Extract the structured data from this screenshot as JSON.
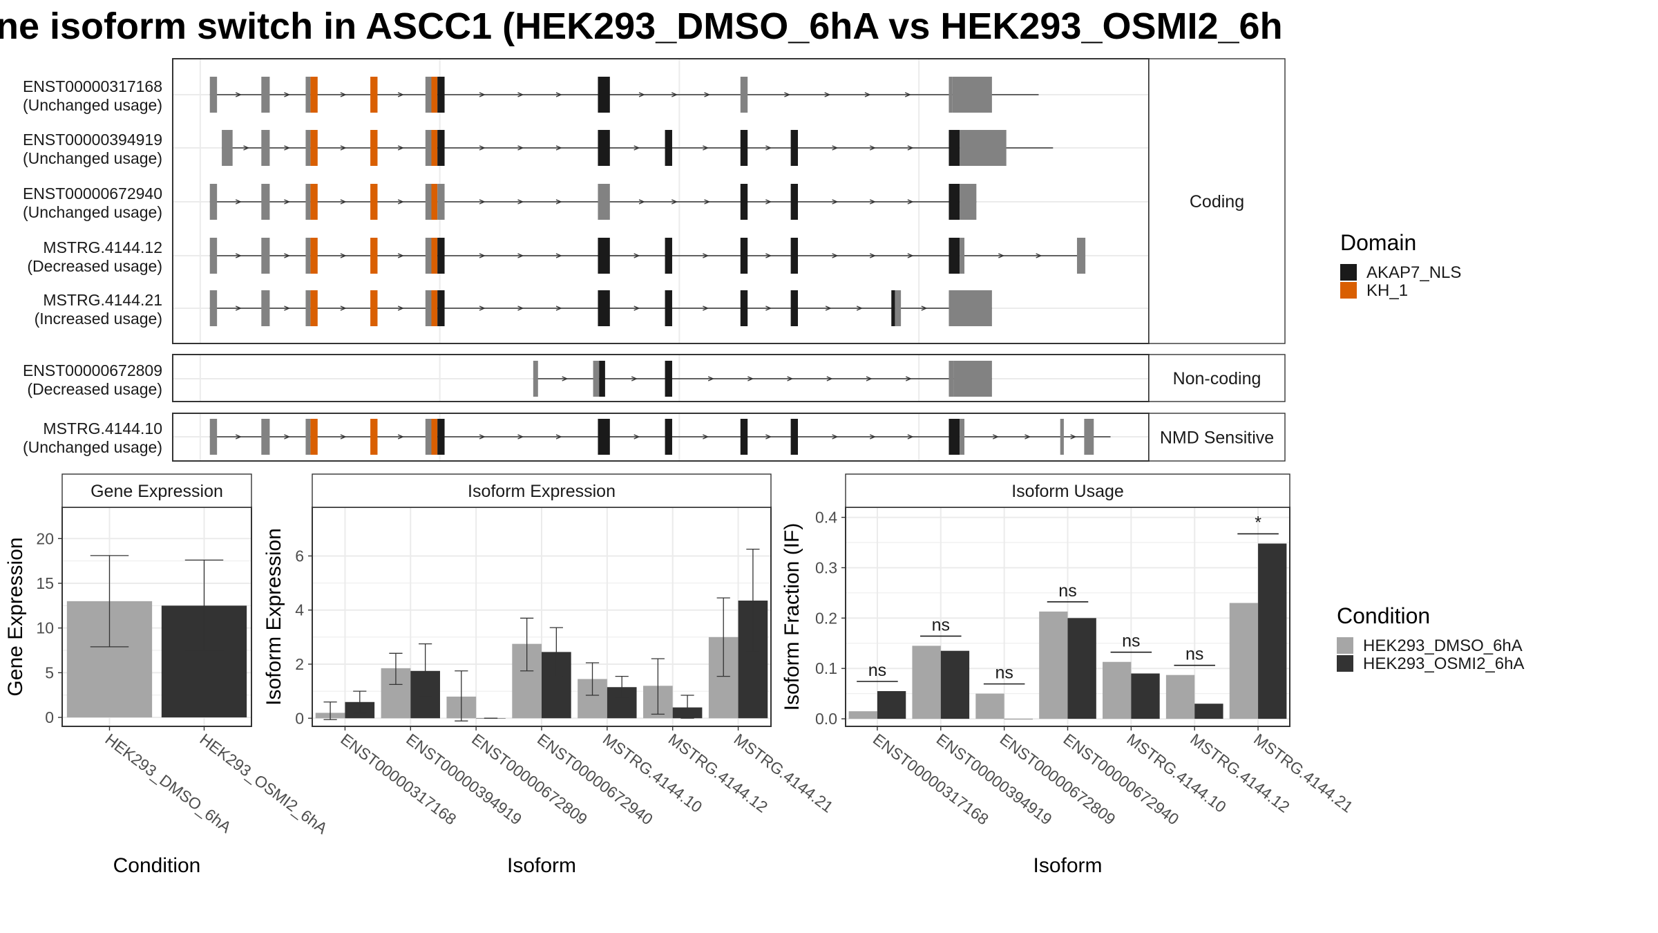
{
  "title": "ne isoform switch in ASCC1 (HEK293_DMSO_6hA vs HEK293_OSMI2_6h",
  "colors": {
    "exon_noncoding": "#828282",
    "exon_coding": "#1a1a1a",
    "AKAP7_NLS": "#1a1a1a",
    "KH_1": "#d95f02",
    "cond1": "#a6a6a6",
    "cond2": "#333333",
    "panel_border": "#333333",
    "strip_border": "#333333",
    "grid": "#ebebeb"
  },
  "domain_legend": {
    "title": "Domain",
    "items": [
      {
        "label": "AKAP7_NLS",
        "color": "#1a1a1a"
      },
      {
        "label": "KH_1",
        "color": "#d95f02"
      }
    ]
  },
  "condition_legend": {
    "title": "Condition",
    "items": [
      {
        "label": "HEK293_DMSO_6hA",
        "color": "#a6a6a6"
      },
      {
        "label": "HEK293_OSMI2_6hA",
        "color": "#333333"
      }
    ]
  },
  "transcripts": {
    "groups": [
      {
        "label": "Coding",
        "rows": [
          {
            "id": "ENST00000317168",
            "usage": "(Unchanged usage)",
            "start": 0.8,
            "end": 70.0,
            "exons": [
              [
                0.8,
                1.4,
                "n"
              ],
              [
                5.1,
                5.8,
                "n"
              ],
              [
                8.8,
                9.2,
                "n"
              ],
              [
                9.2,
                9.8,
                "K"
              ],
              [
                14.2,
                14.8,
                "K"
              ],
              [
                18.8,
                19.3,
                "n"
              ],
              [
                19.3,
                19.8,
                "K"
              ],
              [
                19.8,
                20.4,
                "c"
              ],
              [
                33.2,
                34.2,
                "c"
              ],
              [
                45.1,
                45.7,
                "n"
              ],
              [
                62.5,
                62.8,
                "n"
              ],
              [
                62.8,
                66.1,
                "n"
              ]
            ]
          },
          {
            "id": "ENST00000394919",
            "usage": "(Unchanged usage)",
            "start": 1.8,
            "end": 71.2,
            "exons": [
              [
                1.8,
                2.7,
                "n"
              ],
              [
                5.1,
                5.8,
                "n"
              ],
              [
                8.8,
                9.2,
                "n"
              ],
              [
                9.2,
                9.8,
                "K"
              ],
              [
                14.2,
                14.8,
                "K"
              ],
              [
                18.8,
                19.3,
                "n"
              ],
              [
                19.3,
                19.8,
                "K"
              ],
              [
                19.8,
                20.4,
                "c"
              ],
              [
                33.2,
                34.2,
                "c"
              ],
              [
                38.8,
                39.4,
                "c"
              ],
              [
                45.1,
                45.7,
                "c"
              ],
              [
                49.3,
                49.9,
                "c"
              ],
              [
                62.5,
                63.4,
                "c"
              ],
              [
                63.4,
                67.3,
                "n"
              ]
            ]
          },
          {
            "id": "ENST00000672940",
            "usage": "(Unchanged usage)",
            "start": 0.8,
            "end": 64.8,
            "exons": [
              [
                0.8,
                1.4,
                "n"
              ],
              [
                5.1,
                5.8,
                "n"
              ],
              [
                8.8,
                9.2,
                "n"
              ],
              [
                9.2,
                9.8,
                "K"
              ],
              [
                14.2,
                14.8,
                "K"
              ],
              [
                18.8,
                19.3,
                "n"
              ],
              [
                19.3,
                19.8,
                "K"
              ],
              [
                19.8,
                20.4,
                "n"
              ],
              [
                33.2,
                34.2,
                "n"
              ],
              [
                45.1,
                45.7,
                "c"
              ],
              [
                49.3,
                49.9,
                "c"
              ],
              [
                62.5,
                63.4,
                "c"
              ],
              [
                63.4,
                64.8,
                "n"
              ]
            ]
          },
          {
            "id": "MSTRG.4144.12",
            "usage": "(Decreased usage)",
            "start": 0.8,
            "end": 73.8,
            "exons": [
              [
                0.8,
                1.4,
                "n"
              ],
              [
                5.1,
                5.8,
                "n"
              ],
              [
                8.8,
                9.2,
                "n"
              ],
              [
                9.2,
                9.8,
                "K"
              ],
              [
                14.2,
                14.8,
                "K"
              ],
              [
                18.8,
                19.3,
                "n"
              ],
              [
                19.3,
                19.8,
                "K"
              ],
              [
                19.8,
                20.4,
                "c"
              ],
              [
                33.2,
                34.2,
                "c"
              ],
              [
                38.8,
                39.4,
                "c"
              ],
              [
                45.1,
                45.7,
                "c"
              ],
              [
                49.3,
                49.9,
                "c"
              ],
              [
                62.5,
                63.4,
                "c"
              ],
              [
                63.4,
                63.8,
                "n"
              ],
              [
                73.2,
                73.9,
                "n"
              ]
            ]
          },
          {
            "id": "MSTRG.4144.21",
            "usage": "(Increased usage)",
            "start": 0.8,
            "end": 66.1,
            "exons": [
              [
                0.8,
                1.4,
                "n"
              ],
              [
                5.1,
                5.8,
                "n"
              ],
              [
                8.8,
                9.2,
                "n"
              ],
              [
                9.2,
                9.8,
                "K"
              ],
              [
                14.2,
                14.8,
                "K"
              ],
              [
                18.8,
                19.3,
                "n"
              ],
              [
                19.3,
                19.8,
                "K"
              ],
              [
                19.8,
                20.4,
                "c"
              ],
              [
                33.2,
                34.2,
                "c"
              ],
              [
                38.8,
                39.4,
                "c"
              ],
              [
                45.1,
                45.7,
                "c"
              ],
              [
                49.3,
                49.9,
                "c"
              ],
              [
                57.7,
                58.0,
                "c"
              ],
              [
                58.0,
                58.5,
                "n"
              ],
              [
                62.5,
                66.1,
                "n"
              ]
            ]
          }
        ]
      },
      {
        "label": "Non-coding",
        "rows": [
          {
            "id": "ENST00000672809",
            "usage": "(Decreased usage)",
            "start": 27.8,
            "end": 66.1,
            "exons": [
              [
                27.8,
                28.2,
                "n"
              ],
              [
                32.8,
                33.3,
                "n"
              ],
              [
                33.3,
                33.8,
                "c"
              ],
              [
                38.8,
                39.4,
                "c"
              ],
              [
                62.5,
                62.9,
                "n"
              ],
              [
                62.9,
                66.1,
                "n"
              ]
            ]
          }
        ]
      },
      {
        "label": "NMD Sensitive",
        "rows": [
          {
            "id": "MSTRG.4144.10",
            "usage": "(Unchanged usage)",
            "start": 0.8,
            "end": 76.0,
            "exons": [
              [
                0.8,
                1.4,
                "n"
              ],
              [
                5.1,
                5.8,
                "n"
              ],
              [
                8.8,
                9.2,
                "n"
              ],
              [
                9.2,
                9.8,
                "K"
              ],
              [
                14.2,
                14.8,
                "K"
              ],
              [
                18.8,
                19.3,
                "n"
              ],
              [
                19.3,
                19.8,
                "K"
              ],
              [
                19.8,
                20.4,
                "c"
              ],
              [
                33.2,
                34.2,
                "c"
              ],
              [
                38.8,
                39.4,
                "c"
              ],
              [
                45.1,
                45.7,
                "c"
              ],
              [
                49.3,
                49.9,
                "c"
              ],
              [
                62.5,
                63.4,
                "c"
              ],
              [
                63.4,
                63.8,
                "n"
              ],
              [
                71.8,
                72.1,
                "n"
              ],
              [
                73.8,
                74.6,
                "n"
              ]
            ]
          }
        ]
      }
    ]
  },
  "chart_data": [
    {
      "type": "bar",
      "strip": "Gene Expression",
      "xlabel": "Condition",
      "ylabel": "Gene Expression",
      "ylim": [
        -1,
        23.5
      ],
      "yticks": [
        0,
        5,
        10,
        15,
        20
      ],
      "categories": [
        "HEK293_DMSO_6hA",
        "HEK293_OSMI2_6hA"
      ],
      "values": [
        13.0,
        12.5
      ],
      "errors": [
        [
          7.9,
          18.1
        ],
        [
          7.5,
          17.6
        ]
      ]
    },
    {
      "type": "bar",
      "strip": "Isoform Expression",
      "xlabel": "Isoform",
      "ylabel": "Isoform Expression",
      "ylim": [
        -0.3,
        7.8
      ],
      "yticks": [
        0,
        2,
        4,
        6
      ],
      "categories": [
        "ENST00000317168",
        "ENST00000394919",
        "ENST00000672809",
        "ENST00000672940",
        "MSTRG.4144.10",
        "MSTRG.4144.12",
        "MSTRG.4144.21"
      ],
      "series": [
        {
          "name": "HEK293_DMSO_6hA",
          "values": [
            0.2,
            1.85,
            0.8,
            2.75,
            1.45,
            1.2,
            3.0
          ],
          "errors": [
            [
              -0.05,
              0.6
            ],
            [
              1.25,
              2.4
            ],
            [
              -0.1,
              1.75
            ],
            [
              1.75,
              3.7
            ],
            [
              0.85,
              2.05
            ],
            [
              0.15,
              2.2
            ],
            [
              1.55,
              4.45
            ]
          ]
        },
        {
          "name": "HEK293_OSMI2_6hA",
          "values": [
            0.6,
            1.75,
            0.0,
            2.45,
            1.15,
            0.4,
            4.35
          ],
          "errors": [
            [
              0.2,
              1.0
            ],
            [
              0.8,
              2.75
            ],
            [
              0.0,
              0.0
            ],
            [
              1.55,
              3.35
            ],
            [
              0.75,
              1.55
            ],
            [
              0.0,
              0.85
            ],
            [
              2.45,
              6.25
            ]
          ]
        }
      ]
    },
    {
      "type": "bar",
      "strip": "Isoform Usage",
      "xlabel": "Isoform",
      "ylabel": "Isoform Fraction (IF)",
      "ylim": [
        -0.015,
        0.42
      ],
      "yticks": [
        0.0,
        0.1,
        0.2,
        0.3,
        0.4
      ],
      "categories": [
        "ENST00000317168",
        "ENST00000394919",
        "ENST00000672809",
        "ENST00000672940",
        "MSTRG.4144.10",
        "MSTRG.4144.12",
        "MSTRG.4144.21"
      ],
      "series": [
        {
          "name": "HEK293_DMSO_6hA",
          "values": [
            0.015,
            0.145,
            0.05,
            0.213,
            0.113,
            0.087,
            0.23
          ]
        },
        {
          "name": "HEK293_OSMI2_6hA",
          "values": [
            0.055,
            0.135,
            0.0,
            0.2,
            0.09,
            0.03,
            0.348
          ]
        }
      ],
      "significance": [
        "ns",
        "ns",
        "ns",
        "ns",
        "ns",
        "ns",
        "*"
      ]
    }
  ]
}
